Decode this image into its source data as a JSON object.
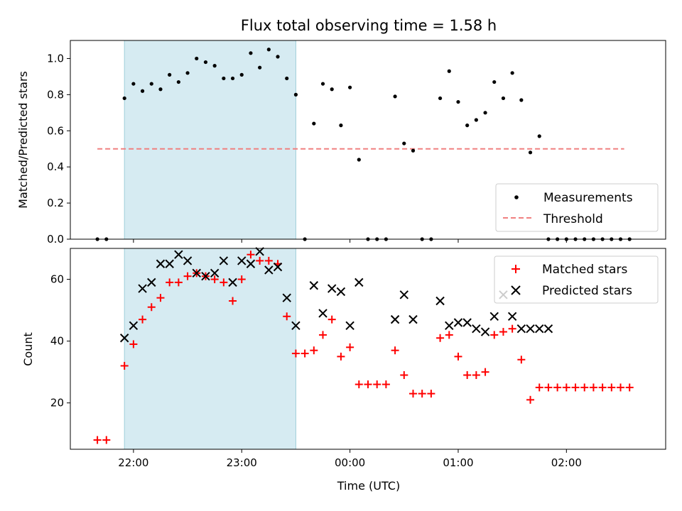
{
  "chart_data": [
    {
      "type": "scatter",
      "title": "Flux total observing time = 1.58 h",
      "xlabel": "",
      "ylabel": "Matched/Predicted stars",
      "ylim": [
        0,
        1.1
      ],
      "yticks": [
        "0.0",
        "0.2",
        "0.4",
        "0.6",
        "0.8",
        "1.0"
      ],
      "xticks": [
        "22:00",
        "23:00",
        "00:00",
        "01:00",
        "02:00"
      ],
      "x_tick_labels_shown": false,
      "highlight_span": {
        "start": "21:55",
        "end": "23:30",
        "color": "#add8e6"
      },
      "threshold": {
        "value": 0.5,
        "x_start": "21:40",
        "x_end": "02:32",
        "color": "#f08080",
        "style": "dashed"
      },
      "legend": {
        "placement": "lower right",
        "entries": [
          {
            "label": "Measurements",
            "marker": "dot",
            "color": "#000000"
          },
          {
            "label": "Threshold",
            "marker": "dashed-line",
            "color": "#f08080"
          }
        ]
      },
      "series": [
        {
          "name": "Measurements",
          "color": "#000000",
          "x": [
            "21:40",
            "21:45",
            "21:55",
            "22:00",
            "22:05",
            "22:10",
            "22:15",
            "22:20",
            "22:25",
            "22:30",
            "22:35",
            "22:40",
            "22:45",
            "22:50",
            "22:55",
            "23:00",
            "23:05",
            "23:10",
            "23:15",
            "23:20",
            "23:25",
            "23:30",
            "23:35",
            "23:40",
            "23:45",
            "23:50",
            "23:55",
            "00:00",
            "00:05",
            "00:10",
            "00:15",
            "00:20",
            "00:25",
            "00:30",
            "00:35",
            "00:40",
            "00:45",
            "00:50",
            "00:55",
            "01:00",
            "01:05",
            "01:10",
            "01:15",
            "01:20",
            "01:25",
            "01:30",
            "01:35",
            "01:40",
            "01:45",
            "01:50",
            "01:55",
            "02:00",
            "02:05",
            "02:10",
            "02:15",
            "02:20",
            "02:25",
            "02:30",
            "02:35"
          ],
          "y": [
            0.0,
            0.0,
            0.78,
            0.86,
            0.82,
            0.86,
            0.83,
            0.91,
            0.87,
            0.92,
            1.0,
            0.98,
            0.96,
            0.89,
            0.89,
            0.91,
            1.03,
            0.95,
            1.05,
            1.01,
            0.89,
            0.8,
            0.0,
            0.64,
            0.86,
            0.83,
            0.63,
            0.84,
            0.44,
            0.0,
            0.0,
            0.0,
            0.79,
            0.53,
            0.49,
            0.0,
            0.0,
            0.78,
            0.93,
            0.76,
            0.63,
            0.66,
            0.7,
            0.87,
            0.78,
            0.92,
            0.77,
            0.48,
            0.57,
            0.0,
            0.0,
            0.0,
            0.0,
            0.0,
            0.0,
            0.0,
            0.0,
            0.0,
            0.0
          ]
        }
      ]
    },
    {
      "type": "scatter",
      "title": "",
      "xlabel": "Time (UTC)",
      "ylabel": "Count",
      "ylim": [
        5,
        70
      ],
      "yticks": [
        "20",
        "40",
        "60"
      ],
      "xticks": [
        "22:00",
        "23:00",
        "00:00",
        "01:00",
        "02:00"
      ],
      "x_range": [
        "21:25",
        "02:55"
      ],
      "highlight_span": {
        "start": "21:55",
        "end": "23:30",
        "color": "#add8e6"
      },
      "legend": {
        "placement": "upper right",
        "entries": [
          {
            "label": "Matched stars",
            "marker": "plus",
            "color": "#ff0000"
          },
          {
            "label": "Predicted stars",
            "marker": "x",
            "color": "#000000"
          }
        ]
      },
      "series": [
        {
          "name": "Matched stars",
          "marker": "plus",
          "color": "#ff0000",
          "x": [
            "21:40",
            "21:45",
            "21:55",
            "22:00",
            "22:05",
            "22:10",
            "22:15",
            "22:20",
            "22:25",
            "22:30",
            "22:35",
            "22:40",
            "22:45",
            "22:50",
            "22:55",
            "23:00",
            "23:05",
            "23:10",
            "23:15",
            "23:20",
            "23:25",
            "23:30",
            "23:35",
            "23:40",
            "23:45",
            "23:50",
            "23:55",
            "00:00",
            "00:05",
            "00:10",
            "00:15",
            "00:20",
            "00:25",
            "00:30",
            "00:35",
            "00:40",
            "00:45",
            "00:50",
            "00:55",
            "01:00",
            "01:05",
            "01:10",
            "01:15",
            "01:20",
            "01:25",
            "01:30",
            "01:35",
            "01:40",
            "01:45",
            "01:50",
            "01:55",
            "02:00",
            "02:05",
            "02:10",
            "02:15",
            "02:20",
            "02:25",
            "02:30",
            "02:35"
          ],
          "y": [
            8,
            8,
            32,
            39,
            47,
            51,
            54,
            59,
            59,
            61,
            62,
            61,
            60,
            59,
            53,
            60,
            68,
            66,
            66,
            65,
            48,
            36,
            36,
            37,
            42,
            47,
            35,
            38,
            26,
            26,
            26,
            26,
            37,
            29,
            23,
            23,
            23,
            41,
            42,
            35,
            29,
            29,
            30,
            42,
            43,
            44,
            34,
            21,
            25,
            25,
            25,
            25,
            25,
            25,
            25,
            25,
            25,
            25,
            25
          ]
        },
        {
          "name": "Predicted stars",
          "marker": "x",
          "color": "#000000",
          "x": [
            "21:55",
            "22:00",
            "22:05",
            "22:10",
            "22:15",
            "22:20",
            "22:25",
            "22:30",
            "22:35",
            "22:40",
            "22:45",
            "22:50",
            "22:55",
            "23:00",
            "23:05",
            "23:10",
            "23:15",
            "23:20",
            "23:25",
            "23:30",
            "23:40",
            "23:45",
            "23:50",
            "23:55",
            "00:00",
            "00:05",
            "00:25",
            "00:30",
            "00:35",
            "00:50",
            "00:55",
            "01:00",
            "01:05",
            "01:10",
            "01:15",
            "01:20",
            "01:25",
            "01:30",
            "01:35",
            "01:40",
            "01:45",
            "01:50"
          ],
          "y": [
            41,
            45,
            57,
            59,
            65,
            65,
            68,
            66,
            62,
            61,
            62,
            66,
            59,
            66,
            65,
            69,
            63,
            64,
            54,
            45,
            58,
            49,
            57,
            56,
            45,
            59,
            47,
            55,
            47,
            53,
            45,
            46,
            46,
            44,
            43,
            48,
            55,
            48,
            44,
            44,
            44,
            44
          ]
        }
      ]
    }
  ]
}
